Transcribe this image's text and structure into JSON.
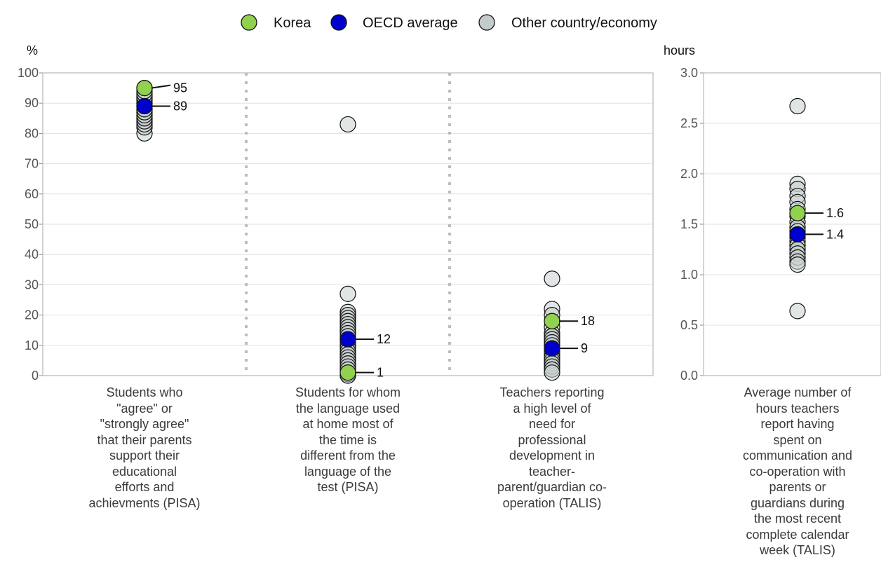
{
  "legend": {
    "items": [
      {
        "label": "Korea",
        "color": "#92d050"
      },
      {
        "label": "OECD average",
        "color": "#0000cc"
      },
      {
        "label": "Other country/economy",
        "color": "#c4cbcb"
      }
    ]
  },
  "chart_data": [
    {
      "type": "scatter",
      "ylabel": "%",
      "ylim": [
        0,
        100
      ],
      "yticks": [
        "0",
        "10",
        "20",
        "30",
        "40",
        "50",
        "60",
        "70",
        "80",
        "90",
        "100"
      ],
      "grid": true,
      "categories": [
        "Students who \"agree\" or \"strongly agree\" that their parents support their educational efforts and achievments (PISA)",
        "Students for whom the language used at home most of the time is different from the language of the test (PISA)",
        "Teachers reporting a high level of need for professional development in teacher-parent/guardian co-operation (TALIS)"
      ],
      "category_lines": [
        [
          "Students who",
          "\"agree\" or",
          "\"strongly agree\"",
          "that their parents",
          "support their",
          "educational",
          "efforts and",
          "achievments (PISA)"
        ],
        [
          "Students for whom",
          "the language used",
          "at home most of",
          "the time is",
          "different from the",
          "language of the",
          "test (PISA)"
        ],
        [
          "Teachers reporting",
          "a high level of",
          "need for",
          "professional",
          "development in",
          "teacher-",
          "parent/guardian co-",
          "operation (TALIS)"
        ]
      ],
      "series": [
        {
          "name": "Other country/economy",
          "values": [
            [
              80,
              82,
              83,
              84,
              85,
              85,
              86,
              86,
              87,
              87,
              88,
              88,
              89,
              89,
              90,
              90,
              91,
              91,
              92,
              92,
              93,
              93,
              94,
              95
            ],
            [
              83,
              27,
              21,
              20,
              19,
              18,
              17,
              16,
              15,
              14,
              13,
              12,
              11,
              10,
              9,
              8,
              7,
              6,
              5,
              4,
              3,
              2,
              1,
              0.5,
              0
            ],
            [
              32,
              22,
              20,
              18,
              16,
              14,
              13,
              12,
              11,
              10,
              9,
              8,
              7,
              6,
              5,
              4,
              3,
              2,
              1
            ]
          ]
        },
        {
          "name": "OECD average",
          "values": [
            89,
            12,
            9
          ],
          "labels": [
            "89",
            "12",
            "9"
          ]
        },
        {
          "name": "Korea",
          "values": [
            95,
            1,
            18
          ],
          "labels": [
            "95",
            "1",
            "18"
          ]
        }
      ]
    },
    {
      "type": "scatter",
      "ylabel": "hours",
      "ylim": [
        0,
        3
      ],
      "yticks": [
        "0.0",
        "0.5",
        "1.0",
        "1.5",
        "2.0",
        "2.5",
        "3.0"
      ],
      "grid": true,
      "categories": [
        "Average number of hours teachers report having spent on communication and co-operation with parents or guardians during the most recent complete calendar week (TALIS)"
      ],
      "category_lines": [
        [
          "Average number of",
          "hours teachers",
          "report having",
          "spent on",
          "communication and",
          "co-operation with",
          "parents or",
          "guardians during",
          "the most recent",
          "complete calendar",
          "week (TALIS)"
        ]
      ],
      "series": [
        {
          "name": "Other country/economy",
          "values": [
            [
              2.67,
              1.9,
              1.85,
              1.78,
              1.72,
              1.65,
              1.58,
              1.52,
              1.47,
              1.43,
              1.37,
              1.33,
              1.29,
              1.25,
              1.21,
              1.17,
              1.13,
              1.1,
              0.64
            ]
          ]
        },
        {
          "name": "OECD average",
          "values": [
            1.4
          ],
          "labels": [
            "1.4"
          ]
        },
        {
          "name": "Korea",
          "values": [
            1.61
          ],
          "labels": [
            "1.6"
          ]
        }
      ]
    }
  ]
}
